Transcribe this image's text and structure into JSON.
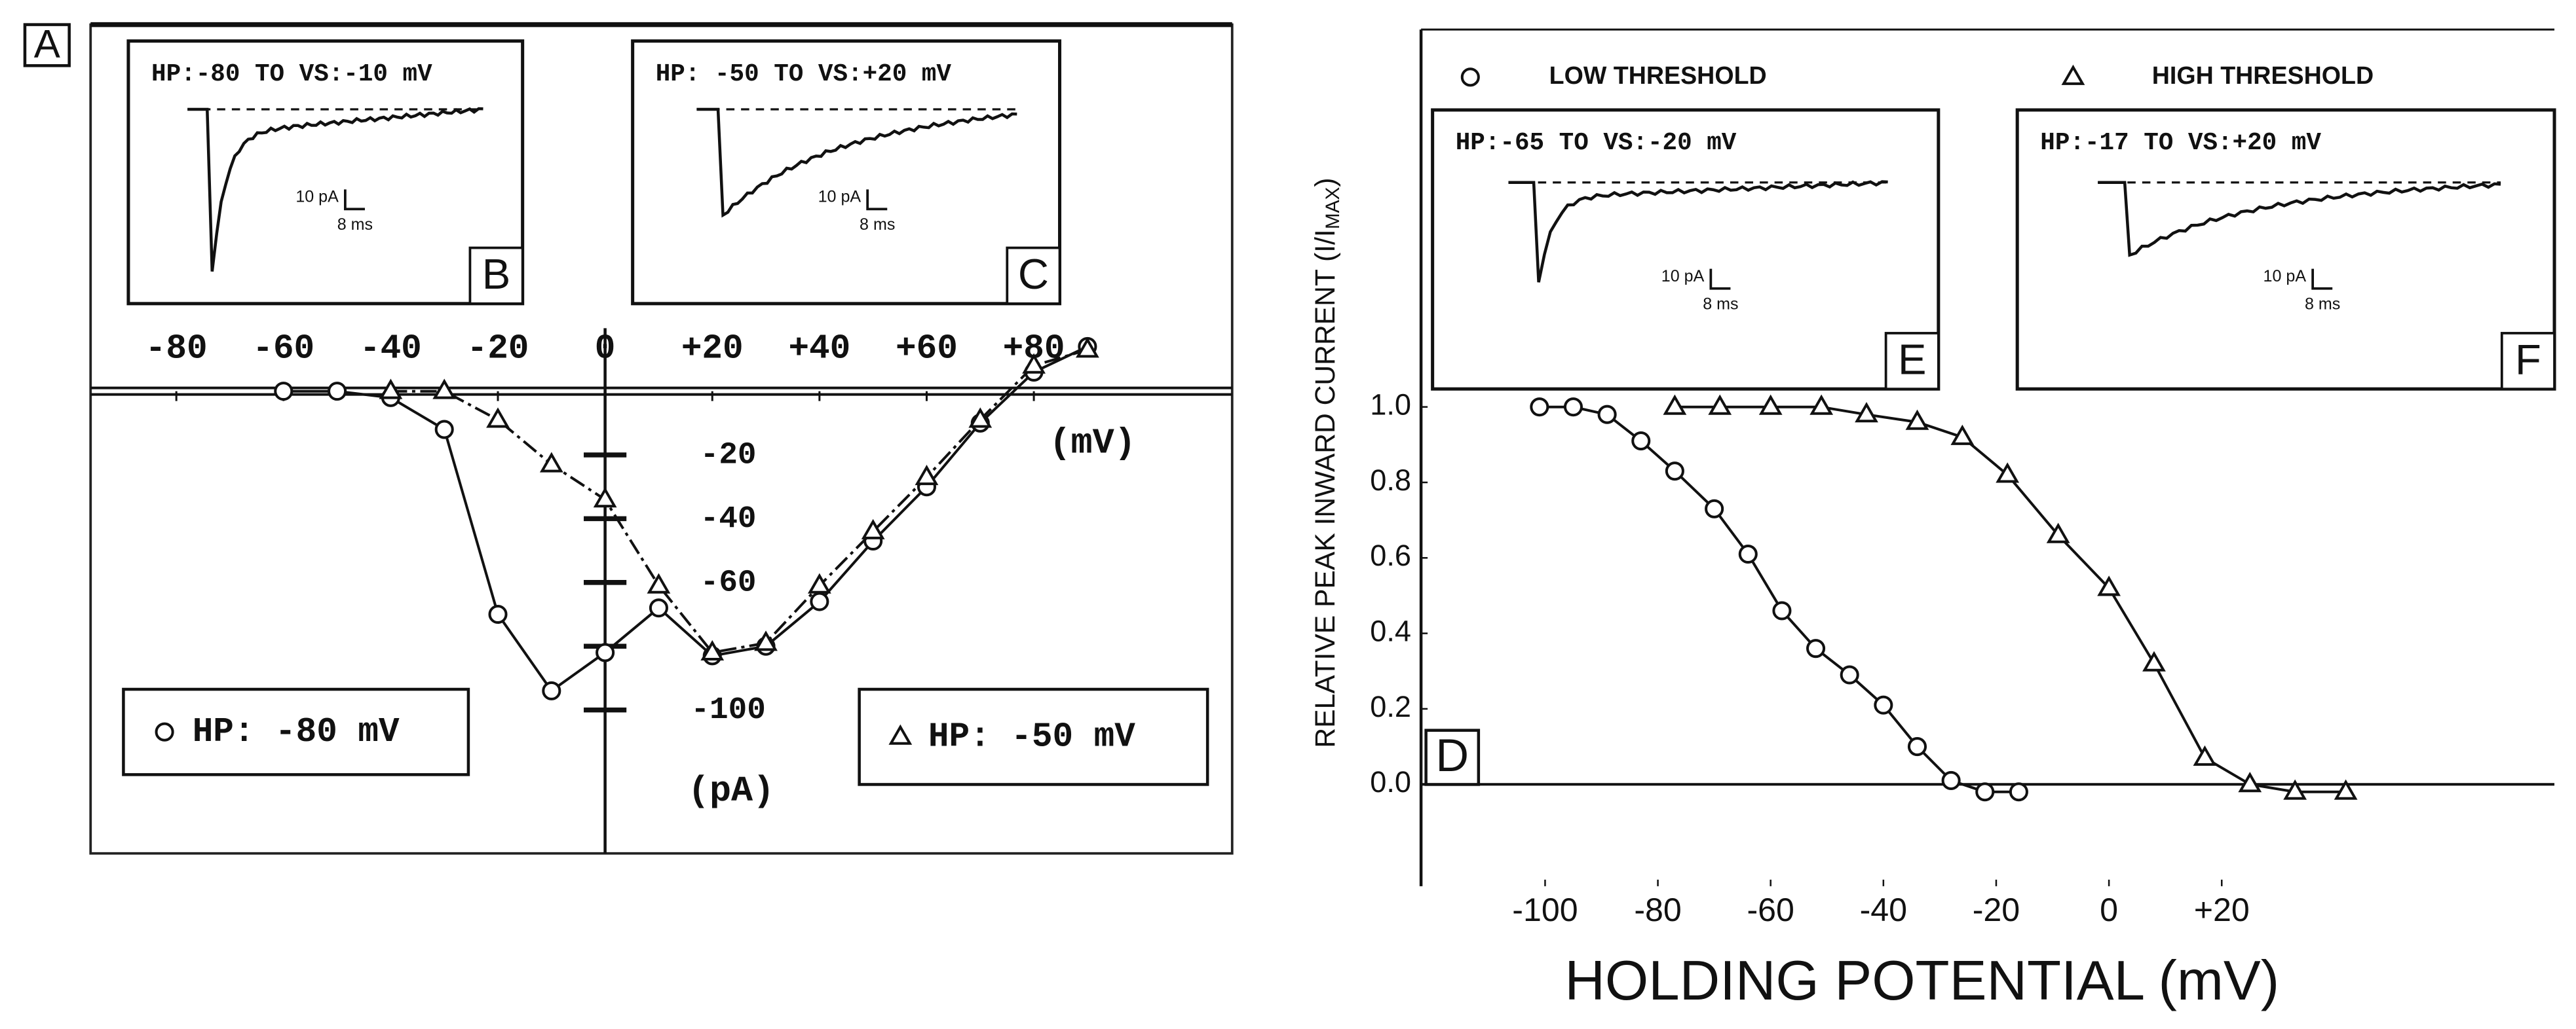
{
  "chart_data": [
    {
      "type": "line",
      "panel": "A",
      "xlabel": "(mV)",
      "ylabel": "(pA)",
      "xlim": [
        -96,
        117
      ],
      "ylim": [
        -145,
        115
      ],
      "xticks": [
        -80,
        -60,
        -40,
        -20,
        0,
        {
          "value": 20,
          "label": "+20"
        },
        {
          "value": 40,
          "label": "+40"
        },
        {
          "value": 60,
          "label": "+60"
        },
        {
          "value": 80,
          "label": "+80"
        }
      ],
      "yticks": [
        -20,
        -40,
        -60,
        {
          "value": -80,
          "label": null
        },
        -100
      ],
      "series": [
        {
          "name": "HP: -80 mV",
          "marker": "circle",
          "color": "#111111",
          "dashed": false,
          "x": [
            -60,
            -50,
            -40,
            -30,
            -20,
            -10,
            0,
            10,
            20,
            30,
            40,
            50,
            60,
            70,
            80,
            90
          ],
          "values": [
            0,
            0,
            -2,
            -12,
            -70,
            -94,
            -82,
            -68,
            -83,
            -80,
            -66,
            -47,
            -30,
            -10,
            6,
            14
          ]
        },
        {
          "name": "HP: -50 mV",
          "marker": "triangle",
          "color": "#111111",
          "dashed": true,
          "x": [
            -40,
            -30,
            -20,
            -10,
            0,
            10,
            20,
            30,
            40,
            50,
            60,
            70,
            80,
            90
          ],
          "values": [
            0,
            0,
            -9,
            -23,
            -34,
            -61,
            -82,
            -79,
            -61,
            -44,
            -27,
            -9,
            8,
            13
          ]
        }
      ],
      "insets": [
        {
          "title": "HP:-80 TO VS:-10 mV",
          "scale_current": "10 pA",
          "scale_time": "8 ms",
          "label": "B"
        },
        {
          "title": "HP: -50 TO VS:+20 mV",
          "scale_current": "10 pA",
          "scale_time": "8 ms",
          "label": "C"
        }
      ]
    },
    {
      "type": "line",
      "panel": "D",
      "xlabel": "HOLDING POTENTIAL (mV)",
      "ylabel": [
        "RELATIVE PEAK INWARD CURRENT (I/I",
        "MAX",
        ")"
      ],
      "xlim": [
        -122,
        79
      ],
      "ylim": [
        -0.27,
        2.0
      ],
      "xticks": [
        -100,
        -80,
        -60,
        -40,
        -20,
        0,
        {
          "value": 20,
          "label": "+20"
        }
      ],
      "yticks": [
        {
          "value": 0,
          "label": "0.0"
        },
        0.2,
        0.4,
        0.6,
        0.8,
        {
          "value": 1,
          "label": "1.0"
        }
      ],
      "series": [
        {
          "name": "LOW THRESHOLD",
          "marker": "circle",
          "color": "#111111",
          "dashed": false,
          "x": [
            -101,
            -95,
            -89,
            -83,
            -77,
            -70,
            -64,
            -58,
            -52,
            -46,
            -40,
            -34,
            -28,
            -22,
            -16
          ],
          "values": [
            1,
            1,
            0.98,
            0.91,
            0.83,
            0.73,
            0.61,
            0.46,
            0.36,
            0.29,
            0.21,
            0.1,
            0.01,
            -0.02,
            -0.02
          ]
        },
        {
          "name": "HIGH THRESHOLD",
          "marker": "triangle",
          "color": "#111111",
          "dashed": false,
          "x": [
            -77,
            -69,
            -60,
            -51,
            -43,
            -34,
            -26,
            -18,
            -9,
            0,
            8,
            17,
            25,
            33,
            42
          ],
          "values": [
            1,
            1,
            1,
            1,
            0.98,
            0.96,
            0.92,
            0.82,
            0.66,
            0.52,
            0.32,
            0.07,
            0,
            -0.02,
            -0.02
          ]
        }
      ],
      "insets": [
        {
          "title": "HP:-65 TO VS:-20 mV",
          "scale_current": "10 pA",
          "scale_time": "8 ms",
          "label": "E"
        },
        {
          "title": "HP:-17 TO VS:+20 mV",
          "scale_current": "10 pA",
          "scale_time": "8 ms",
          "label": "F"
        }
      ]
    }
  ]
}
